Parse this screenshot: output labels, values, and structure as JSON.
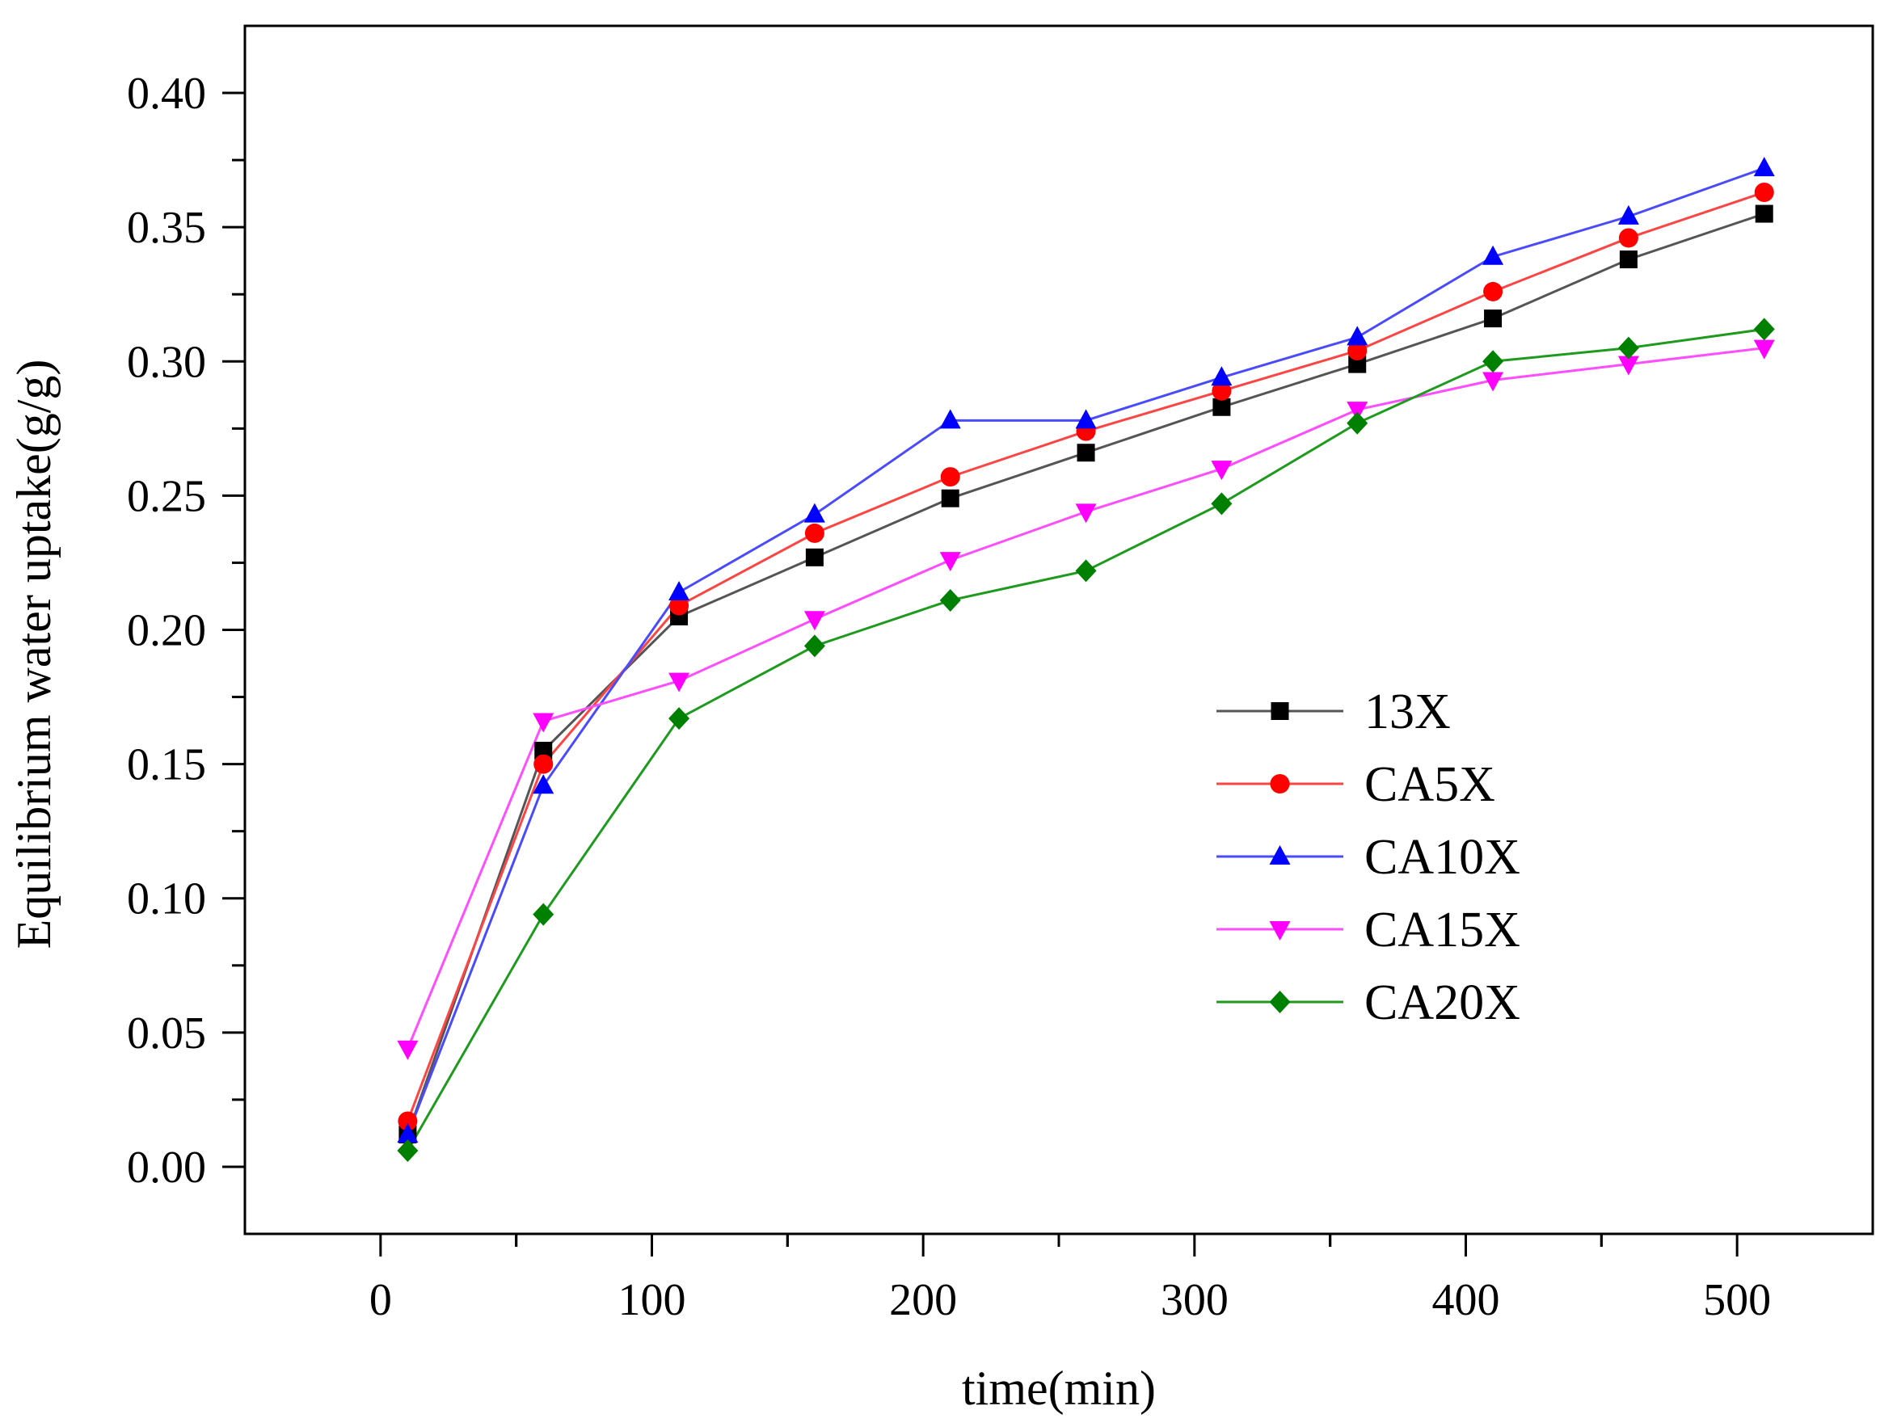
{
  "chart_data": {
    "type": "line",
    "title": "",
    "xlabel": "time(min)",
    "ylabel": "Equilibrium water uptake(g/g)",
    "xlim": [
      -50,
      550
    ],
    "ylim": [
      -0.025,
      0.425
    ],
    "xticks": [
      0,
      100,
      200,
      300,
      400,
      500
    ],
    "xtick_labels": [
      "0",
      "100",
      "200",
      "300",
      "400",
      "500"
    ],
    "yticks": [
      0.0,
      0.05,
      0.1,
      0.15,
      0.2,
      0.25,
      0.3,
      0.35,
      0.4
    ],
    "ytick_labels": [
      "0.00",
      "0.05",
      "0.10",
      "0.15",
      "0.20",
      "0.25",
      "0.30",
      "0.35",
      "0.40"
    ],
    "grid": false,
    "legend_position": "center-right",
    "x": [
      10,
      60,
      110,
      160,
      210,
      260,
      310,
      360,
      410,
      460,
      510
    ],
    "series": [
      {
        "name": "13X",
        "color": "#000000",
        "line_color": "#555555",
        "marker": "square",
        "values": [
          0.012,
          0.155,
          0.205,
          0.227,
          0.249,
          0.266,
          0.283,
          0.299,
          0.316,
          0.338,
          0.355
        ]
      },
      {
        "name": "CA5X",
        "color": "#ff0000",
        "line_color": "#ff4444",
        "marker": "circle",
        "values": [
          0.017,
          0.15,
          0.209,
          0.236,
          0.257,
          0.274,
          0.289,
          0.304,
          0.326,
          0.346,
          0.363
        ]
      },
      {
        "name": "CA10X",
        "color": "#0000ff",
        "line_color": "#4a4aff",
        "marker": "triangle-up",
        "values": [
          0.012,
          0.142,
          0.214,
          0.243,
          0.278,
          0.278,
          0.294,
          0.309,
          0.339,
          0.354,
          0.372
        ]
      },
      {
        "name": "CA15X",
        "color": "#ff00ff",
        "line_color": "#ff4dff",
        "marker": "triangle-down",
        "values": [
          0.044,
          0.166,
          0.181,
          0.204,
          0.226,
          0.244,
          0.26,
          0.282,
          0.293,
          0.299,
          0.305
        ]
      },
      {
        "name": "CA20X",
        "color": "#008000",
        "line_color": "#1e9a1e",
        "marker": "diamond",
        "values": [
          0.006,
          0.094,
          0.167,
          0.194,
          0.211,
          0.222,
          0.247,
          0.277,
          0.3,
          0.305,
          0.312
        ]
      }
    ]
  }
}
